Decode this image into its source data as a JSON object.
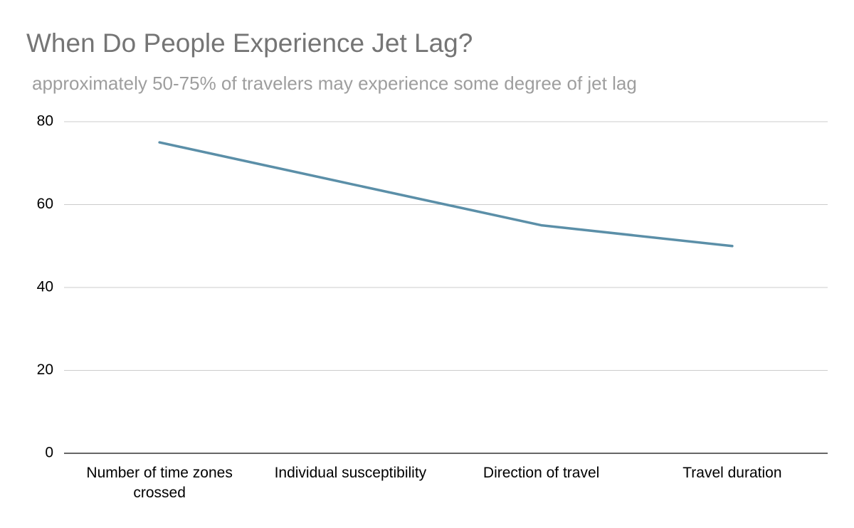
{
  "chart_data": {
    "type": "line",
    "title": "When Do People Experience Jet Lag?",
    "subtitle": "approximately 50-75% of travelers may experience some degree of jet lag",
    "xlabel": "",
    "ylabel": "",
    "categories": [
      "Number of time zones crossed",
      "Individual susceptibility",
      "Direction of travel",
      "Travel duration"
    ],
    "category_label_lines": [
      [
        "Number of time zones",
        "crossed"
      ],
      [
        "Individual susceptibility"
      ],
      [
        "Direction of travel"
      ],
      [
        "Travel duration"
      ]
    ],
    "series": [
      {
        "values": [
          75,
          65,
          55,
          50
        ],
        "color": "#5b8fa8"
      }
    ],
    "ylim": [
      0,
      80
    ],
    "yticks": [
      0,
      20,
      40,
      60,
      80
    ],
    "grid": true,
    "legend": "none",
    "colors": {
      "grid": "#cccccc",
      "axis": "#333333",
      "title": "#757575",
      "subtitle": "#9e9e9e"
    }
  }
}
